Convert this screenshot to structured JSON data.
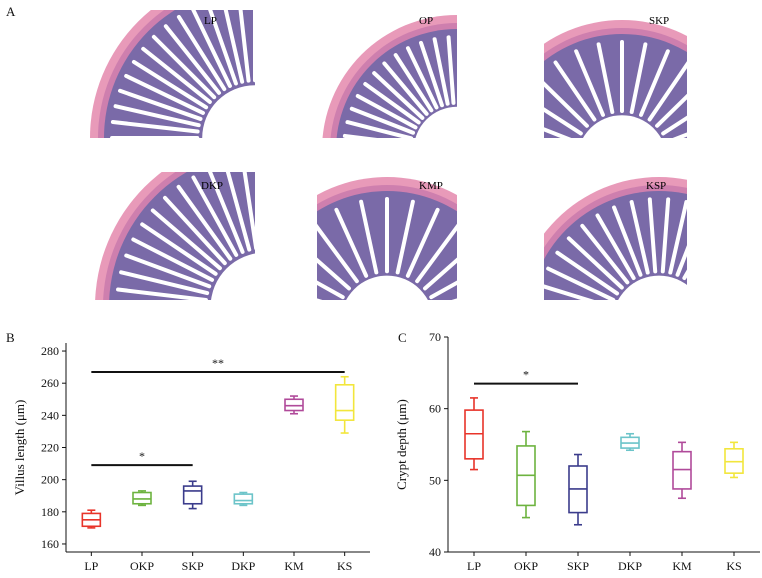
{
  "figure": {
    "panel_a": {
      "letter": "A",
      "images": [
        {
          "label": "LP"
        },
        {
          "label": "OP"
        },
        {
          "label": "SKP"
        },
        {
          "label": "DKP"
        },
        {
          "label": "KMP"
        },
        {
          "label": "KSP"
        }
      ]
    },
    "panel_b": {
      "letter": "B"
    },
    "panel_c": {
      "letter": "C"
    }
  },
  "colors": {
    "tissue_outer": "#e89ab9",
    "tissue_inner": "#ce7fae",
    "villus": "#7a6aa8",
    "lumen": "#ffffff",
    "series": [
      "#e8342a",
      "#6db33f",
      "#3b3c8c",
      "#6cc4c9",
      "#b04a9a",
      "#f2e63c"
    ]
  },
  "chart_data": [
    {
      "type": "box",
      "panel": "B",
      "categories": [
        "LP",
        "OKP",
        "SKP",
        "DKP",
        "KM",
        "KS"
      ],
      "ylabel": "Villus length (μm)",
      "ylim": [
        155,
        285
      ],
      "yticks": [
        160,
        180,
        200,
        220,
        240,
        260,
        280
      ],
      "boxes": [
        {
          "min": 170,
          "q1": 171,
          "median": 175,
          "q3": 179,
          "max": 181
        },
        {
          "min": 184,
          "q1": 185,
          "median": 188,
          "q3": 192,
          "max": 193
        },
        {
          "min": 182,
          "q1": 185,
          "median": 193,
          "q3": 196,
          "max": 199
        },
        {
          "min": 184,
          "q1": 185,
          "median": 187,
          "q3": 191,
          "max": 192
        },
        {
          "min": 241,
          "q1": 243,
          "median": 246,
          "q3": 250,
          "max": 252
        },
        {
          "min": 229,
          "q1": 237,
          "median": 243,
          "q3": 259,
          "max": 264
        }
      ],
      "significance": [
        {
          "from": "LP",
          "to": "SKP",
          "y": 209,
          "label": "*"
        },
        {
          "from": "LP",
          "to": "KS",
          "y": 267,
          "label": "**"
        }
      ]
    },
    {
      "type": "box",
      "panel": "C",
      "categories": [
        "LP",
        "OKP",
        "SKP",
        "DKP",
        "KM",
        "KS"
      ],
      "ylabel": "Crypt depth (μm)",
      "ylim": [
        40,
        70
      ],
      "yticks": [
        40,
        50,
        60,
        70
      ],
      "boxes": [
        {
          "min": 51.5,
          "q1": 53.0,
          "median": 56.5,
          "q3": 59.8,
          "max": 61.5
        },
        {
          "min": 44.8,
          "q1": 46.5,
          "median": 50.7,
          "q3": 54.8,
          "max": 56.8
        },
        {
          "min": 43.8,
          "q1": 45.5,
          "median": 48.8,
          "q3": 52.0,
          "max": 53.6
        },
        {
          "min": 54.2,
          "q1": 54.5,
          "median": 55.2,
          "q3": 56.0,
          "max": 56.5
        },
        {
          "min": 47.5,
          "q1": 48.8,
          "median": 51.5,
          "q3": 54.0,
          "max": 55.3
        },
        {
          "min": 50.4,
          "q1": 51.0,
          "median": 52.6,
          "q3": 54.4,
          "max": 55.3
        }
      ],
      "significance": [
        {
          "from": "LP",
          "to": "SKP",
          "y": 63.5,
          "label": "*"
        }
      ]
    }
  ]
}
